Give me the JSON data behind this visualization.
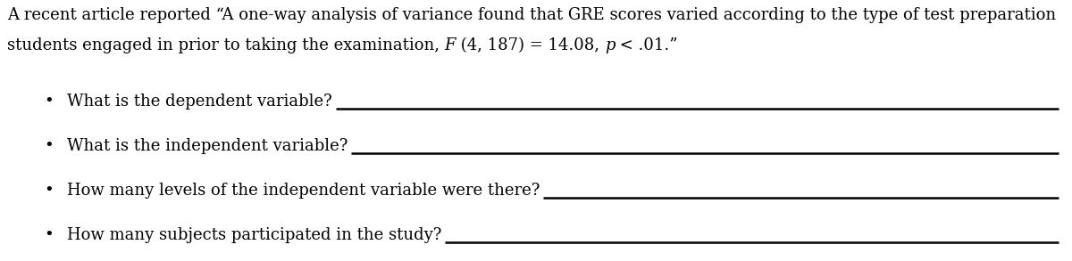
{
  "line1": "A recent article reported “A one-way analysis of variance found that GRE scores varied according to the type of test preparation",
  "line2_before_F": "students engaged in prior to taking the examination, ",
  "line2_F": "F",
  "line2_after_F": " (4, 187) = 14.08, ",
  "line2_p": "p",
  "line2_end": " < .01.”",
  "questions": [
    "What is the dependent variable?",
    "What is the independent variable?",
    "How many levels of the independent variable were there?",
    "How many subjects participated in the study?"
  ],
  "bullet": "•",
  "bg_color": "#ffffff",
  "text_color": "#000000",
  "font_size_para": 13.0,
  "font_size_q": 13.0,
  "line_color": "#000000",
  "line_width": 1.8
}
